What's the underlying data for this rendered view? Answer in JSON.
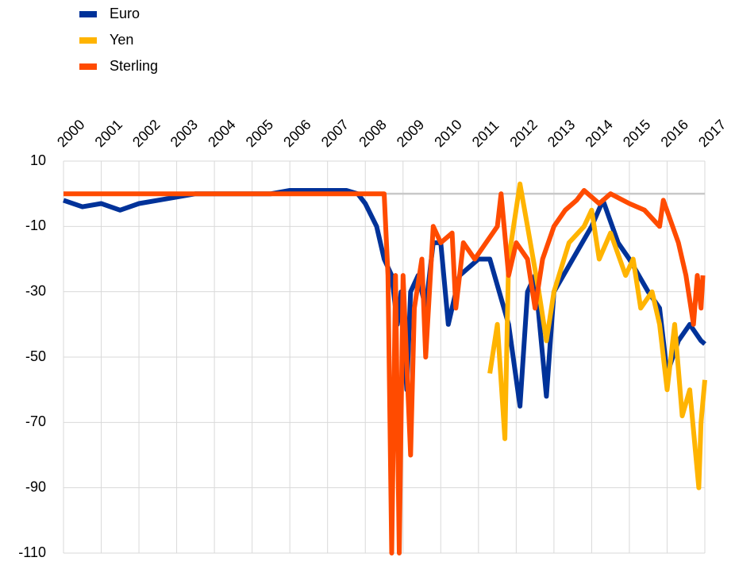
{
  "chart_data": {
    "type": "line",
    "xlim": [
      2000,
      2017
    ],
    "xticks": [
      2000,
      2001,
      2002,
      2003,
      2004,
      2005,
      2006,
      2007,
      2008,
      2009,
      2010,
      2011,
      2012,
      2013,
      2014,
      2015,
      2016,
      2017
    ],
    "ylim": [
      -110,
      10
    ],
    "yticks": [
      10,
      -10,
      -30,
      -50,
      -70,
      -90,
      -110
    ],
    "grid": true,
    "legend": "top-left",
    "series": [
      {
        "name": "Euro",
        "color": "#003299",
        "x": [
          2000,
          2000.5,
          2001,
          2001.5,
          2002,
          2002.5,
          2003,
          2003.5,
          2004,
          2004.5,
          2005,
          2005.5,
          2006,
          2006.5,
          2007,
          2007.5,
          2007.8,
          2008,
          2008.3,
          2008.5,
          2008.7,
          2008.85,
          2008.95,
          2009.1,
          2009.2,
          2009.4,
          2009.6,
          2009.8,
          2010,
          2010.2,
          2010.5,
          2011,
          2011.3,
          2011.8,
          2012.1,
          2012.3,
          2012.5,
          2012.8,
          2013,
          2013.5,
          2014,
          2014.3,
          2014.7,
          2015,
          2015.5,
          2015.8,
          2016,
          2016.3,
          2016.6,
          2016.9,
          2017
        ],
        "values": [
          -2,
          -4,
          -3,
          -5,
          -3,
          -2,
          -1,
          0,
          0,
          0,
          0,
          0,
          1,
          1,
          1,
          1,
          0,
          -3,
          -10,
          -20,
          -25,
          -40,
          -30,
          -60,
          -30,
          -25,
          -35,
          -15,
          -15,
          -40,
          -25,
          -20,
          -20,
          -40,
          -65,
          -30,
          -25,
          -62,
          -30,
          -20,
          -10,
          -2,
          -15,
          -20,
          -30,
          -35,
          -55,
          -45,
          -40,
          -45,
          -46
        ]
      },
      {
        "name": "Yen",
        "color": "#ffb400",
        "x": [
          2011.3,
          2011.5,
          2011.7,
          2011.8,
          2012.1,
          2012.3,
          2012.6,
          2012.8,
          2013,
          2013.4,
          2013.8,
          2014,
          2014.2,
          2014.5,
          2014.9,
          2015.1,
          2015.3,
          2015.6,
          2015.8,
          2016,
          2016.2,
          2016.4,
          2016.6,
          2016.84,
          2016.9,
          2017
        ],
        "values": [
          -55,
          -40,
          -75,
          -20,
          3,
          -10,
          -30,
          -45,
          -30,
          -15,
          -10,
          -5,
          -20,
          -12,
          -25,
          -20,
          -35,
          -30,
          -40,
          -60,
          -40,
          -68,
          -60,
          -90,
          -70,
          -57
        ]
      },
      {
        "name": "Sterling",
        "color": "#ff4b00",
        "x": [
          2000,
          2008.5,
          2008.6,
          2008.7,
          2008.8,
          2008.9,
          2009,
          2009.2,
          2009.3,
          2009.5,
          2009.6,
          2009.8,
          2010,
          2010.3,
          2010.4,
          2010.6,
          2010.9,
          2011.2,
          2011.5,
          2011.6,
          2011.8,
          2012,
          2012.3,
          2012.5,
          2012.7,
          2013,
          2013.3,
          2013.6,
          2013.8,
          2014.2,
          2014.5,
          2015,
          2015.4,
          2015.8,
          2015.9,
          2016.3,
          2016.5,
          2016.7,
          2016.8,
          2016.9,
          2016.95
        ],
        "values": [
          0,
          0,
          -25,
          -110,
          -25,
          -110,
          -25,
          -80,
          -35,
          -20,
          -50,
          -10,
          -15,
          -12,
          -35,
          -15,
          -20,
          -15,
          -10,
          0,
          -25,
          -15,
          -20,
          -35,
          -20,
          -10,
          -5,
          -2,
          1,
          -3,
          0,
          -3,
          -5,
          -10,
          -2,
          -15,
          -25,
          -40,
          -25,
          -35,
          -25
        ]
      }
    ]
  }
}
